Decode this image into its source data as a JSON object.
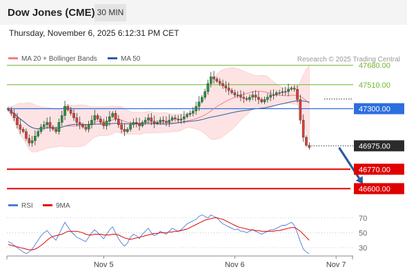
{
  "header": {
    "title": "Dow Jones (CME)",
    "timeframe": "30 MIN",
    "datetime": "Thursday, November 6, 2025 6:12:31 PM CET"
  },
  "legend": {
    "ma20": {
      "label": "MA 20 + Bollinger Bands",
      "color": "#f08080"
    },
    "ma50": {
      "label": "MA 50",
      "color": "#2f5d9e"
    },
    "rsi": {
      "label": "RSI",
      "color": "#4a7bd6"
    },
    "ma9": {
      "label": "9MA",
      "color": "#e00000"
    }
  },
  "research_credit": "Research © 2025 Trading Central",
  "chart_data": [
    {
      "type": "candlestick",
      "ylim": [
        46530,
        47720
      ],
      "x_ticks": [
        {
          "label": "Nov 5",
          "bar": 32
        },
        {
          "label": "Nov 6",
          "bar": 76
        },
        {
          "label": "Nov 7",
          "bar": 110
        }
      ],
      "levels": [
        {
          "value": 47680,
          "label": "47680.00",
          "kind": "resistance",
          "color": "#6fb52c"
        },
        {
          "value": 47510,
          "label": "47510.00",
          "kind": "resistance",
          "color": "#6fb52c"
        },
        {
          "value": 47300,
          "label": "47300.00",
          "kind": "pivot",
          "color": "#2d6ee0"
        },
        {
          "value": 46770,
          "label": "46770.00",
          "kind": "support",
          "color": "#e00000"
        },
        {
          "value": 46600,
          "label": "46600.00",
          "kind": "support",
          "color": "#e00000"
        }
      ],
      "last_price": {
        "value": 46975,
        "label": "46975.00"
      },
      "arrow": {
        "from": {
          "bar": 111,
          "value": 46960
        },
        "to": {
          "bar": 119,
          "value": 46640
        }
      },
      "close": [
        47290,
        47260,
        47220,
        47160,
        47120,
        47100,
        47040,
        47000,
        47020,
        47060,
        47100,
        47140,
        47160,
        47180,
        47140,
        47120,
        47100,
        47180,
        47240,
        47320,
        47290,
        47260,
        47220,
        47180,
        47160,
        47140,
        47120,
        47160,
        47200,
        47240,
        47210,
        47180,
        47150,
        47190,
        47230,
        47260,
        47210,
        47160,
        47120,
        47100,
        47120,
        47160,
        47180,
        47170,
        47150,
        47180,
        47200,
        47220,
        47190,
        47170,
        47180,
        47200,
        47190,
        47180,
        47200,
        47220,
        47210,
        47200,
        47210,
        47230,
        47250,
        47260,
        47280,
        47320,
        47360,
        47400,
        47450,
        47520,
        47580,
        47560,
        47540,
        47520,
        47500,
        47480,
        47460,
        47440,
        47420,
        47420,
        47400,
        47390,
        47380,
        47400,
        47420,
        47400,
        47380,
        47360,
        47380,
        47400,
        47420,
        47420,
        47440,
        47440,
        47450,
        47450,
        47470,
        47480,
        47470,
        47380,
        47200,
        47050,
        46980,
        46960
      ]
    },
    {
      "type": "line",
      "ylim": [
        15,
        80
      ],
      "y_ticks": [
        70,
        50,
        30
      ],
      "series": [
        {
          "name": "RSI",
          "values": [
            38,
            36,
            33,
            30,
            27,
            24,
            22,
            24,
            28,
            34,
            40,
            46,
            50,
            53,
            48,
            44,
            40,
            48,
            56,
            64,
            58,
            52,
            48,
            44,
            42,
            40,
            38,
            44,
            50,
            54,
            50,
            46,
            42,
            48,
            54,
            58,
            50,
            42,
            36,
            32,
            36,
            44,
            48,
            46,
            42,
            48,
            52,
            56,
            50,
            46,
            48,
            52,
            50,
            48,
            52,
            56,
            54,
            52,
            54,
            58,
            62,
            64,
            66,
            68,
            72,
            74,
            72,
            70,
            74,
            72,
            70,
            66,
            62,
            60,
            58,
            56,
            54,
            55,
            52,
            52,
            50,
            52,
            54,
            52,
            50,
            48,
            50,
            52,
            54,
            54,
            56,
            58,
            60,
            60,
            62,
            64,
            60,
            50,
            38,
            28,
            24,
            22
          ]
        },
        {
          "name": "9MA",
          "values": [
            34,
            33,
            32,
            31,
            30,
            29,
            28,
            27,
            27,
            28,
            30,
            33,
            36,
            40,
            43,
            45,
            46,
            47,
            48,
            50,
            52,
            52,
            52,
            52,
            51,
            50,
            48,
            47,
            47,
            48,
            48,
            48,
            47,
            47,
            47,
            48,
            48,
            47,
            45,
            43,
            42,
            41,
            42,
            43,
            44,
            45,
            46,
            47,
            48,
            49,
            49,
            50,
            50,
            50,
            51,
            51,
            52,
            52,
            53,
            54,
            55,
            57,
            59,
            61,
            63,
            65,
            67,
            68,
            69,
            70,
            70,
            69,
            68,
            66,
            64,
            62,
            60,
            58,
            57,
            56,
            55,
            54,
            54,
            53,
            53,
            52,
            52,
            52,
            52,
            52,
            53,
            53,
            54,
            55,
            56,
            57,
            57,
            55,
            52,
            48,
            44,
            40
          ]
        }
      ]
    }
  ]
}
